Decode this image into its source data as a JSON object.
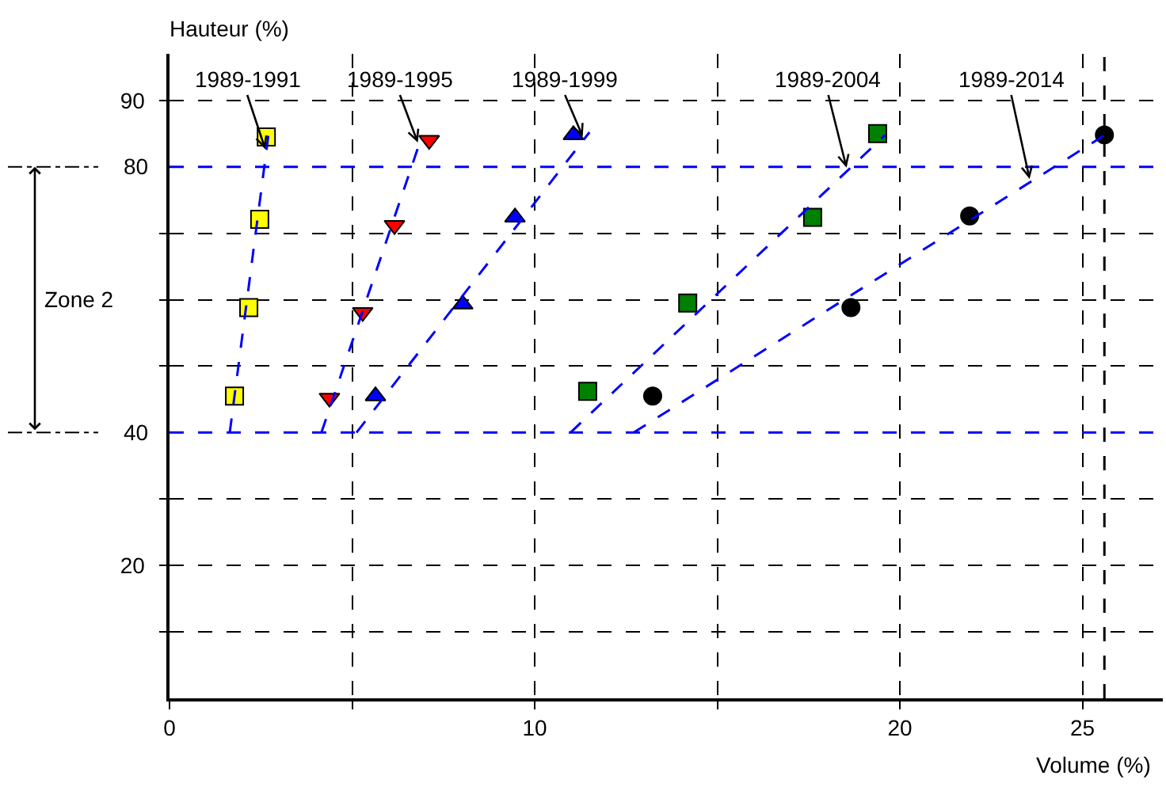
{
  "chart_data": {
    "type": "scatter",
    "xlabel": "Volume (%)",
    "ylabel": "Hauteur (%)",
    "xlim": [
      0,
      27.2
    ],
    "ylim": [
      0,
      97
    ],
    "xticks": [
      0,
      {
        "value": 5,
        "label": null
      },
      10,
      {
        "value": 15,
        "label": null
      },
      20,
      25
    ],
    "yticks": [
      {
        "value": 10,
        "label": null
      },
      20,
      {
        "value": 30,
        "label": null
      },
      {
        "value": 50,
        "label": null
      },
      {
        "value": 60,
        "label": null
      },
      {
        "value": 70,
        "label": null
      },
      90
    ],
    "grid": true,
    "series": [
      {
        "marker": "square",
        "color": "#ffff00",
        "x": [
          1.78,
          2.17,
          2.47,
          2.65
        ],
        "values": [
          45.5,
          58.8,
          72.1,
          84.5
        ]
      },
      {
        "marker": "triangle-down",
        "color": "#ff0000",
        "x": [
          4.38,
          5.29,
          6.16,
          7.11
        ],
        "values": [
          45.2,
          58.1,
          71.2,
          84.0
        ]
      },
      {
        "marker": "triangle",
        "color": "#0000ff",
        "x": [
          5.64,
          8.03,
          9.46,
          11.06
        ],
        "values": [
          45.5,
          59.3,
          72.4,
          84.8
        ]
      },
      {
        "marker": "square",
        "color": "#008000",
        "x": [
          11.45,
          14.19,
          17.61,
          19.39
        ],
        "values": [
          46.2,
          59.5,
          72.4,
          85.0
        ]
      },
      {
        "marker": "circle",
        "color": "#000000",
        "x": [
          13.23,
          18.66,
          21.91,
          25.6
        ],
        "values": [
          45.5,
          58.8,
          72.6,
          84.8
        ]
      },
      {
        "type": "line",
        "line_style": "dashed",
        "color": "#0000ff",
        "x": [
          1.65,
          2.73
        ],
        "values": [
          40,
          85.7
        ]
      },
      {
        "type": "line",
        "line_style": "dashed",
        "color": "#0000ff",
        "x": [
          4.16,
          6.85
        ],
        "values": [
          40,
          83.6
        ]
      },
      {
        "type": "line",
        "line_style": "dashed",
        "color": "#0000ff",
        "x": [
          5.12,
          11.5
        ],
        "values": [
          40,
          85.2
        ]
      },
      {
        "type": "line",
        "line_style": "dashed",
        "color": "#0000ff",
        "x": [
          10.98,
          19.6
        ],
        "values": [
          40,
          84.8
        ]
      },
      {
        "type": "line",
        "line_style": "dashed",
        "color": "#0000ff",
        "x": [
          12.71,
          25.73
        ],
        "values": [
          40,
          85.2
        ]
      }
    ],
    "ref_lines": [
      {
        "axis": "y",
        "value": 80,
        "label": "80",
        "color": "#0000ff",
        "line_style": "dashed"
      },
      {
        "axis": "y",
        "value": 40,
        "label": "40",
        "color": "#0000ff",
        "line_style": "dashed"
      },
      {
        "axis": "x",
        "value": 25.6,
        "color": "#000000",
        "line_style": "dashed"
      }
    ],
    "annotations": [
      "Zone 2",
      {
        "text": "1989-1991",
        "x": 2.65,
        "y": 82.2
      },
      {
        "text": "1989-1995",
        "x": 6.83,
        "y": 83.2
      },
      {
        "text": "1989-1999",
        "x": 11.35,
        "y": 84.1
      },
      {
        "text": "1989-2004",
        "x": 18.56,
        "y": 79.4
      },
      {
        "text": "1989-2014",
        "x": 23.57,
        "y": 77.7
      }
    ]
  }
}
